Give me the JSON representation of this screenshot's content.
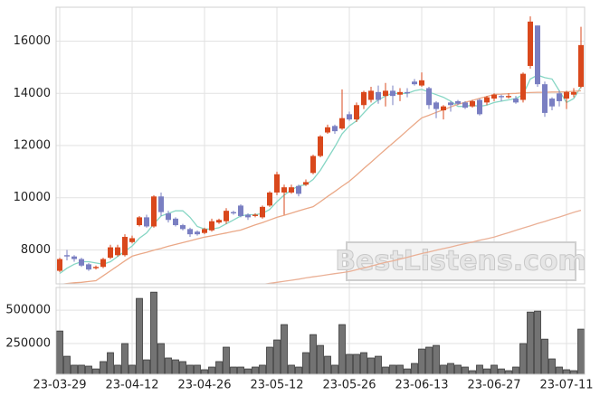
{
  "chart_data": [
    {
      "type": "candlestick",
      "watermark": "BestListens.com",
      "up_color": "#d9481c",
      "down_color": "#7a7fc2",
      "ylim": [
        6700,
        17300
      ],
      "yticks": [
        8000,
        10000,
        12000,
        14000,
        16000
      ],
      "grid": true,
      "categories": [
        "23-03-29",
        null,
        null,
        null,
        null,
        null,
        null,
        null,
        null,
        null,
        "23-04-12",
        null,
        null,
        null,
        null,
        null,
        null,
        null,
        null,
        null,
        "23-04-26",
        null,
        null,
        null,
        null,
        null,
        null,
        null,
        null,
        null,
        "23-05-12",
        null,
        null,
        null,
        null,
        null,
        null,
        null,
        null,
        null,
        "23-05-26",
        null,
        null,
        null,
        null,
        null,
        null,
        null,
        null,
        null,
        "23-06-13",
        null,
        null,
        null,
        null,
        null,
        null,
        null,
        null,
        null,
        "23-06-27",
        null,
        null,
        null,
        null,
        null,
        null,
        null,
        null,
        null,
        "23-07-11",
        null,
        null
      ],
      "open": [
        7200,
        7800,
        7750,
        7650,
        7450,
        7300,
        7350,
        7700,
        7800,
        7800,
        8300,
        8950,
        9250,
        8900,
        10050,
        9400,
        9200,
        8950,
        8800,
        8700,
        8650,
        8750,
        9050,
        9100,
        9450,
        9700,
        9350,
        9300,
        9250,
        9700,
        10200,
        10200,
        10200,
        10450,
        10500,
        10950,
        11600,
        12500,
        12750,
        12650,
        13200,
        13000,
        13550,
        13750,
        14050,
        13900,
        14100,
        13950,
        14050,
        14450,
        14300,
        14200,
        13650,
        13350,
        13650,
        13700,
        13650,
        13500,
        13750,
        13650,
        13800,
        13900,
        13850,
        13800,
        13750,
        15050,
        16600,
        14350,
        13800,
        14000,
        13800,
        13950,
        14250
      ],
      "high": [
        7700,
        8000,
        7800,
        7700,
        7500,
        7400,
        7700,
        8200,
        8200,
        8600,
        8550,
        9300,
        9350,
        10100,
        10200,
        9500,
        9250,
        9000,
        8850,
        8750,
        8850,
        9200,
        9200,
        9600,
        9500,
        9750,
        9400,
        9400,
        9700,
        10250,
        11000,
        10500,
        10500,
        10500,
        10700,
        11650,
        12400,
        12800,
        12800,
        14150,
        13300,
        13650,
        14100,
        14250,
        14300,
        14400,
        14300,
        14200,
        14200,
        14550,
        14800,
        14250,
        13700,
        13550,
        13700,
        13750,
        13700,
        13750,
        13800,
        13900,
        14000,
        13950,
        14000,
        13900,
        14800,
        16950,
        16600,
        14450,
        13850,
        14100,
        14100,
        14200,
        16550
      ],
      "low": [
        7150,
        7600,
        7550,
        7350,
        7200,
        7250,
        7300,
        7650,
        7750,
        7750,
        8250,
        8900,
        8850,
        8850,
        9300,
        9050,
        8900,
        8750,
        8500,
        8550,
        8600,
        8700,
        9000,
        9000,
        9350,
        9250,
        9150,
        9250,
        9200,
        9650,
        10100,
        9350,
        10150,
        10050,
        10450,
        10900,
        11550,
        12450,
        12450,
        12600,
        12950,
        12900,
        13400,
        13650,
        13600,
        13500,
        13550,
        13700,
        13850,
        14300,
        14250,
        13400,
        13050,
        13000,
        13300,
        13550,
        13400,
        13450,
        13150,
        13550,
        13700,
        13700,
        13800,
        13600,
        13650,
        14950,
        14250,
        13100,
        13350,
        13500,
        13400,
        13850,
        14200
      ],
      "close": [
        7650,
        7750,
        7650,
        7400,
        7250,
        7350,
        7650,
        8100,
        8100,
        8500,
        8450,
        9250,
        8900,
        10050,
        9450,
        9150,
        8950,
        8800,
        8600,
        8600,
        8800,
        9100,
        9150,
        9500,
        9400,
        9300,
        9250,
        9350,
        9650,
        10200,
        10900,
        10400,
        10400,
        10150,
        10600,
        11600,
        12350,
        12700,
        12550,
        13050,
        13000,
        13550,
        14050,
        14100,
        13750,
        14100,
        13900,
        14050,
        14000,
        14350,
        14500,
        13550,
        13400,
        13500,
        13550,
        13600,
        13450,
        13700,
        13200,
        13850,
        13950,
        13850,
        13900,
        13650,
        14750,
        16750,
        14350,
        13250,
        13500,
        13700,
        14050,
        14050,
        15850
      ],
      "lines": [
        {
          "color": "#86d6c4",
          "values": [
            7100,
            7300,
            7450,
            7550,
            7550,
            7500,
            7450,
            7550,
            7750,
            7950,
            8150,
            8450,
            8650,
            9000,
            9300,
            9400,
            9500,
            9500,
            9250,
            8900,
            8800,
            8800,
            8850,
            9000,
            9150,
            9300,
            9350,
            9350,
            9400,
            9550,
            9850,
            10100,
            10300,
            10450,
            10500,
            10700,
            11050,
            11500,
            11950,
            12450,
            12750,
            12950,
            13250,
            13550,
            13750,
            13900,
            14000,
            14000,
            14000,
            14100,
            14150,
            14050,
            13950,
            13850,
            13700,
            13500,
            13500,
            13550,
            13500,
            13550,
            13650,
            13700,
            13750,
            13800,
            13950,
            14550,
            14700,
            14600,
            14550,
            14100,
            13650,
            13800,
            14250
          ]
        },
        {
          "color": "#eaa887",
          "values": [
            6680,
            6710,
            6740,
            6760,
            6790,
            6820,
            7010,
            7200,
            7390,
            7580,
            7760,
            7840,
            7910,
            7990,
            8060,
            8140,
            8210,
            8280,
            8350,
            8420,
            8490,
            8540,
            8600,
            8650,
            8710,
            8760,
            8860,
            8960,
            9050,
            9150,
            9250,
            9330,
            9410,
            9500,
            9580,
            9660,
            9850,
            10050,
            10240,
            10440,
            10630,
            10870,
            11120,
            11360,
            11610,
            11850,
            12090,
            12330,
            12580,
            12820,
            13060,
            13160,
            13270,
            13370,
            13480,
            13580,
            13660,
            13730,
            13810,
            13880,
            13960,
            13970,
            13990,
            14000,
            14020,
            14030,
            14040,
            14040,
            14050,
            14050,
            14060,
            14080,
            14100
          ]
        },
        {
          "color": "#eab096",
          "values": [
            null,
            null,
            null,
            null,
            null,
            null,
            null,
            null,
            null,
            null,
            null,
            null,
            null,
            null,
            null,
            null,
            null,
            null,
            null,
            null,
            null,
            null,
            null,
            null,
            null,
            null,
            null,
            null,
            6680,
            6720,
            6760,
            6800,
            6840,
            6880,
            6930,
            6970,
            7010,
            7050,
            7090,
            7130,
            7170,
            7240,
            7310,
            7380,
            7450,
            7520,
            7580,
            7650,
            7720,
            7790,
            7860,
            7920,
            7990,
            8050,
            8110,
            8180,
            8240,
            8300,
            8370,
            8430,
            8490,
            8580,
            8660,
            8750,
            8840,
            8920,
            9010,
            9090,
            9180,
            9260,
            9350,
            9440,
            9520
          ]
        }
      ]
    },
    {
      "type": "bar",
      "color": "#737373",
      "ylim": [
        20000,
        670000
      ],
      "yticks": [
        250000,
        500000
      ],
      "grid": true,
      "values": [
        344000,
        155000,
        88000,
        88000,
        81000,
        60000,
        115000,
        182000,
        88000,
        250000,
        88000,
        588000,
        128000,
        635000,
        250000,
        142000,
        128000,
        115000,
        88000,
        88000,
        54000,
        74000,
        115000,
        223000,
        74000,
        74000,
        60000,
        74000,
        88000,
        223000,
        277000,
        392000,
        88000,
        74000,
        182000,
        317000,
        236000,
        155000,
        88000,
        392000,
        169000,
        169000,
        182000,
        142000,
        155000,
        74000,
        88000,
        88000,
        60000,
        101000,
        209000,
        223000,
        236000,
        88000,
        101000,
        88000,
        74000,
        47000,
        88000,
        60000,
        88000,
        60000,
        47000,
        74000,
        250000,
        486000,
        493000,
        283000,
        135000,
        74000,
        54000,
        47000,
        358000
      ]
    }
  ]
}
